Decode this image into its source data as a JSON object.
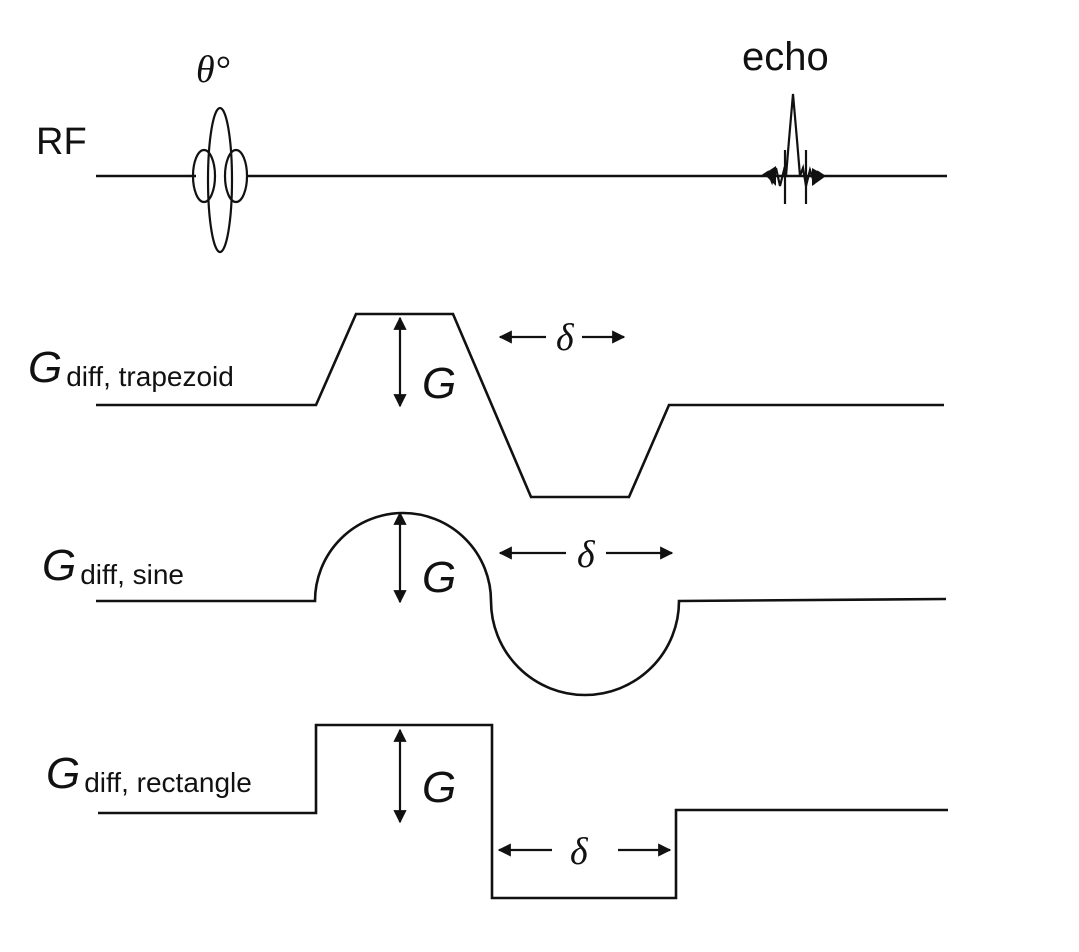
{
  "rf": {
    "label": "RF",
    "flip_angle_label": "θ°",
    "echo_label": "echo"
  },
  "trapezoid": {
    "main": "G",
    "subscript": "diff, trapezoid",
    "amplitude_label": "G",
    "delta_label": "δ"
  },
  "sine": {
    "main": "G",
    "subscript": "diff, sine",
    "amplitude_label": "G",
    "delta_label": "δ"
  },
  "rectangle": {
    "main": "G",
    "subscript": "diff, rectangle",
    "amplitude_label": "G",
    "delta_label": "δ"
  }
}
